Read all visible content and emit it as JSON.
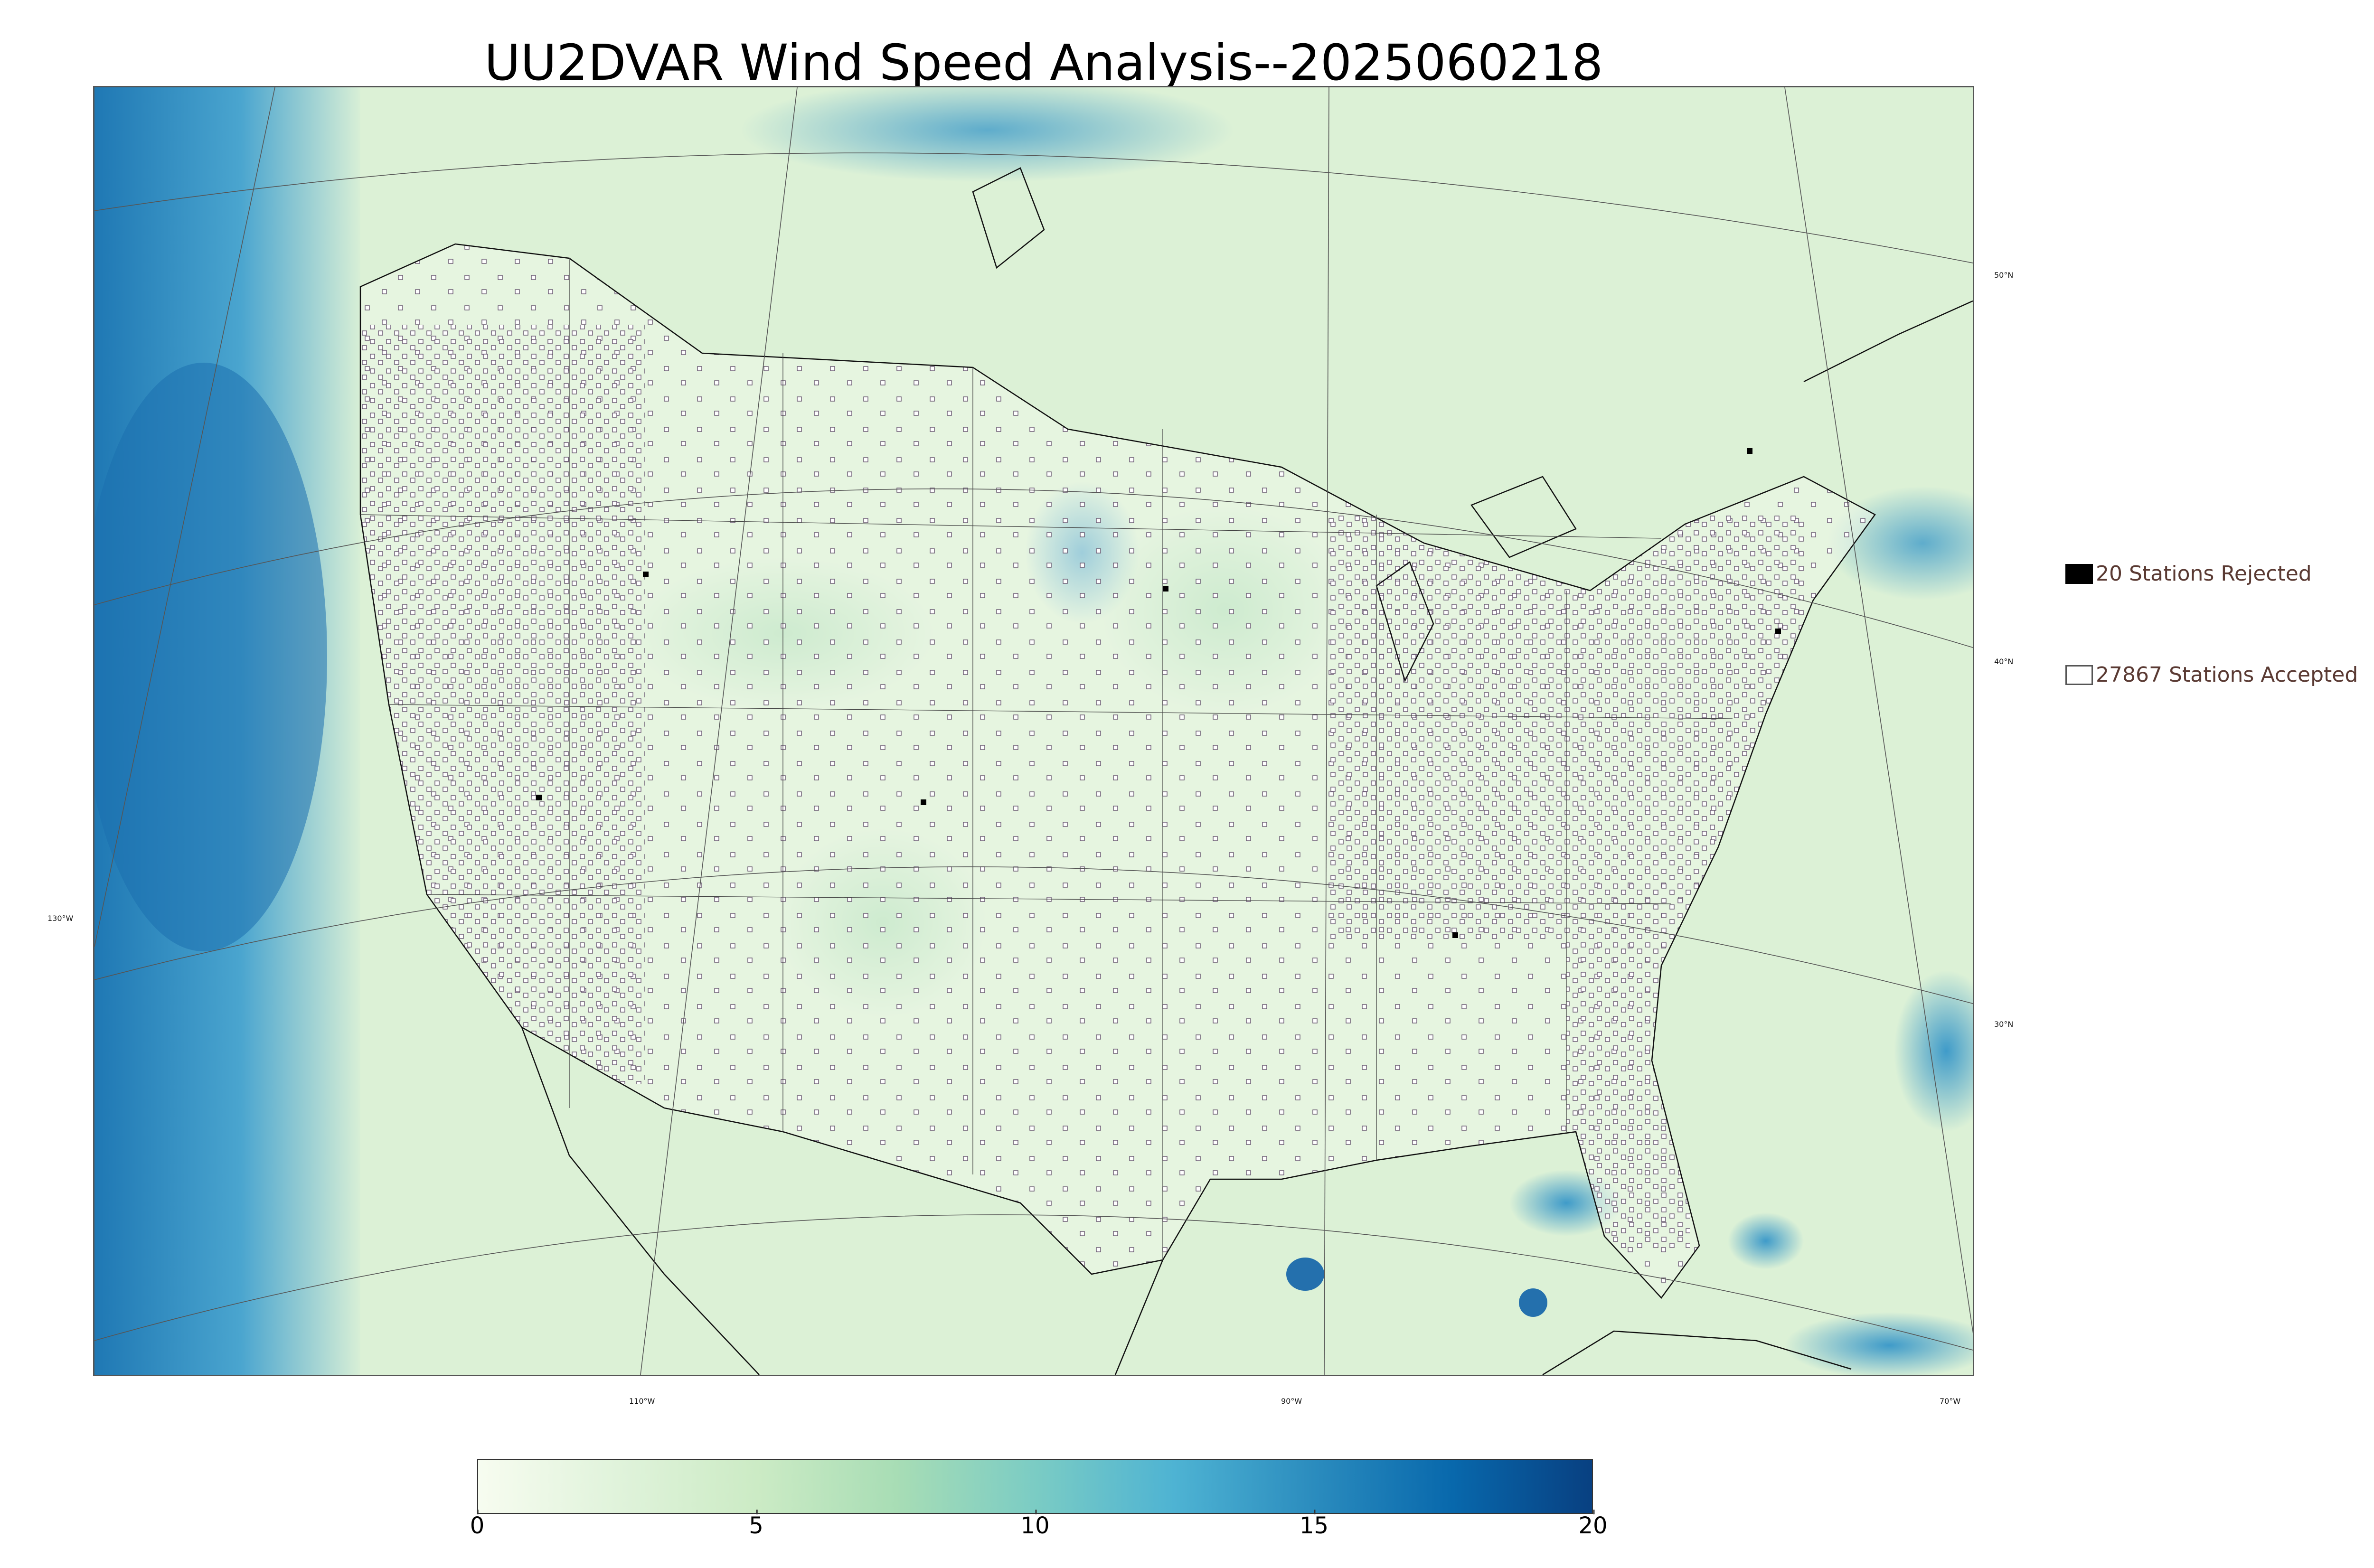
{
  "title": "UU2DVAR Wind Speed Analysis--2025060218",
  "legend": {
    "rejected_label": "20 Stations Rejected",
    "accepted_label": "27867 Stations Accepted"
  },
  "graticule": {
    "longitude_labels": [
      "130°W",
      "110°W",
      "90°W",
      "70°W"
    ],
    "latitude_labels": [
      "50°N",
      "40°N",
      "30°N"
    ]
  },
  "colorbar": {
    "min": 0,
    "max": 20,
    "ticks": [
      "0",
      "5",
      "10",
      "15",
      "20"
    ],
    "colors": [
      "#f7fcf0",
      "#e0f3db",
      "#ccebc5",
      "#a8ddb5",
      "#7bccc4",
      "#4eb3d3",
      "#2b8cbe",
      "#0868ac",
      "#084081"
    ]
  },
  "stations": {
    "rejected_count": 20,
    "accepted_count": 27867,
    "rejected_color": "#000000",
    "accepted_color": "#ffffff"
  }
}
